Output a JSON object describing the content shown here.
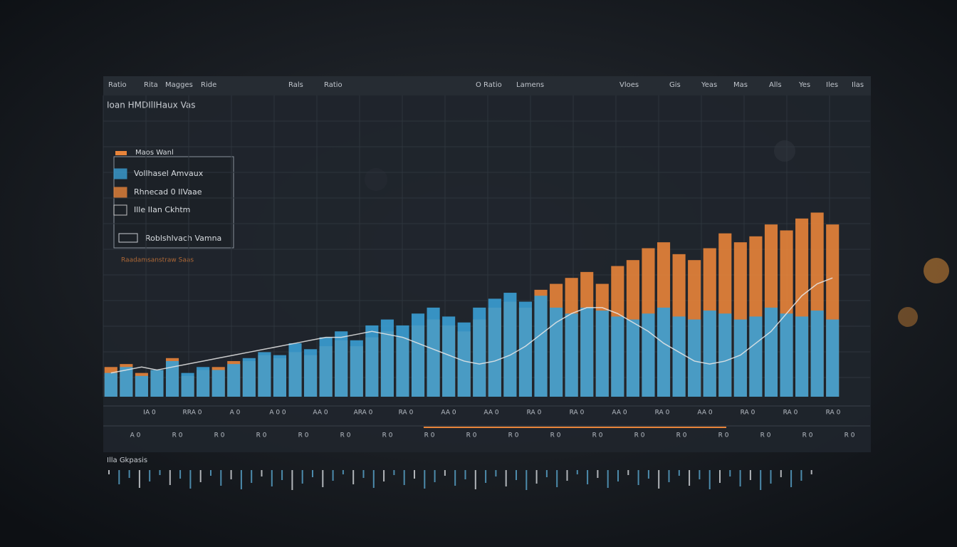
{
  "toolbar": [
    "Ratio",
    "Rita",
    "Magges",
    "Ride",
    "Rals",
    "Ratio",
    "O Ratio",
    "Lamens",
    "Vloes",
    "Gis",
    "Yeas",
    "Mas",
    "Alls",
    "Yes",
    "Iles",
    "Ilas"
  ],
  "chart_data": {
    "type": "bar",
    "title": "Ioan HMDIlIHaux Vas",
    "subtitle": "Maos Wanl",
    "annotation": "Roblshlvach Vamna",
    "note": "Raadamsanstraw Saas",
    "footer": "Illa Gkpasis",
    "categories": [
      null,
      null,
      null,
      null,
      null,
      null,
      null,
      null,
      null,
      null,
      null,
      null,
      null,
      null,
      null,
      null,
      null,
      null,
      null,
      null,
      null,
      null,
      null,
      null,
      null,
      null,
      null,
      null,
      null,
      null,
      null,
      null,
      null,
      null,
      null,
      null,
      null,
      null,
      null,
      null,
      null,
      null,
      null,
      null,
      null,
      null,
      null,
      null
    ],
    "xtick_labels": [
      "IA 0",
      "RRA 0",
      "A 0",
      "A 0 0",
      "AA 0",
      "ARA 0",
      "RA 0",
      "AA 0",
      "AA 0",
      "RA 0",
      "RA 0",
      "AA 0",
      "RA 0",
      "AA 0",
      "RA 0",
      "RA 0",
      "RA 0"
    ],
    "xtick_labels_2": [
      "A 0",
      "R 0",
      "R 0",
      "R 0",
      "R 0",
      "R 0",
      "R 0",
      "R 0",
      "R 0",
      "R 0",
      "R 0",
      "R 0",
      "R 0",
      "R 0",
      "R 0",
      "R 0",
      "R 0",
      "R 0"
    ],
    "ylim": [
      0,
      100
    ],
    "series": [
      {
        "name": "Rhnecad 0 IIVaae",
        "color": "#e8843a",
        "values": [
          10,
          11,
          8,
          9,
          13,
          7,
          9,
          10,
          12,
          12,
          14,
          13,
          15,
          14,
          17,
          19,
          17,
          20,
          22,
          20,
          24,
          26,
          24,
          22,
          26,
          30,
          32,
          30,
          36,
          38,
          40,
          42,
          38,
          44,
          46,
          50,
          52,
          48,
          46,
          50,
          55,
          52,
          54,
          58,
          56,
          60,
          62,
          58
        ]
      },
      {
        "name": "Vollhasel Amvaux",
        "color": "#3a9fd4",
        "values": [
          8,
          10,
          7,
          9,
          12,
          8,
          10,
          9,
          11,
          13,
          15,
          14,
          18,
          16,
          20,
          22,
          19,
          24,
          26,
          24,
          28,
          30,
          27,
          25,
          30,
          33,
          35,
          32,
          34,
          30,
          28,
          30,
          29,
          27,
          26,
          28,
          30,
          27,
          26,
          29,
          28,
          26,
          27,
          30,
          28,
          27,
          29,
          26
        ]
      },
      {
        "name": "Ille IIan Ckhtm",
        "color": "#e8e8e8",
        "type": "line",
        "values": [
          8,
          9,
          10,
          9,
          10,
          11,
          12,
          13,
          14,
          15,
          16,
          17,
          18,
          19,
          20,
          20,
          21,
          22,
          21,
          20,
          18,
          16,
          14,
          12,
          11,
          12,
          14,
          17,
          21,
          25,
          28,
          30,
          30,
          28,
          25,
          22,
          18,
          15,
          12,
          11,
          12,
          14,
          18,
          22,
          28,
          34,
          38,
          40
        ]
      }
    ]
  }
}
